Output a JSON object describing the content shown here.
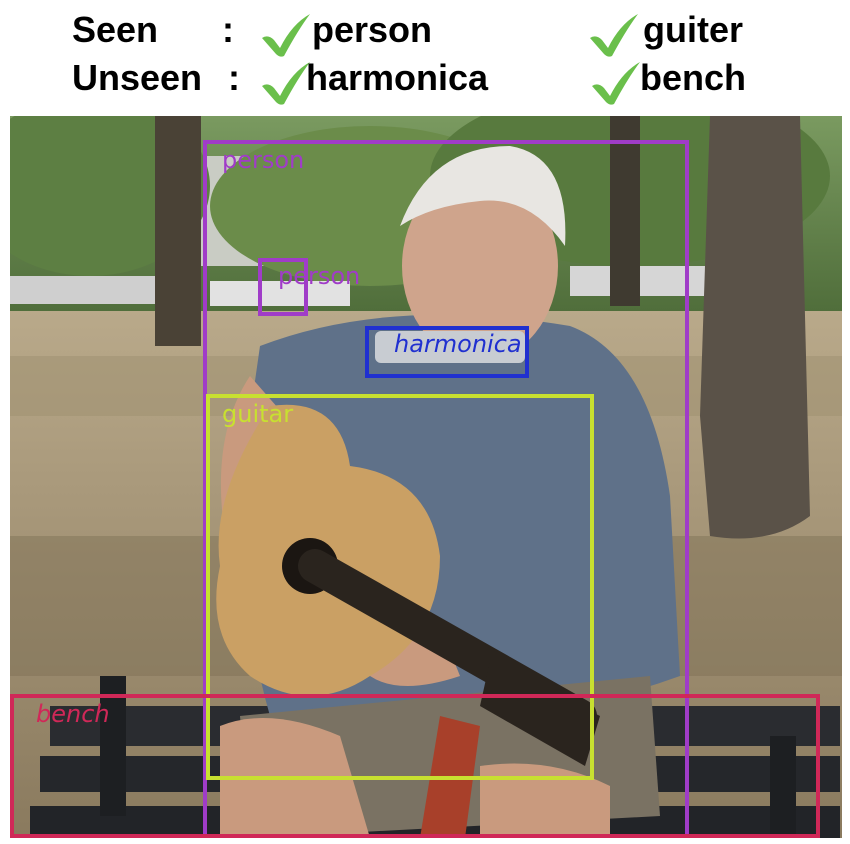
{
  "legend": {
    "seen_label": "Seen",
    "unseen_label": "Unseen",
    "colon": ":",
    "seen_items": [
      "person",
      "guiter"
    ],
    "unseen_items": [
      "harmonica",
      "bench"
    ],
    "check_icon": "check-icon",
    "check_color": "#6abf4b"
  },
  "detections": [
    {
      "label": "person",
      "color": "#a03cc8"
    },
    {
      "label": "person",
      "color": "#a03cc8"
    },
    {
      "label": "harmonica",
      "color": "#2030d0"
    },
    {
      "label": "guitar",
      "color": "#c8e030"
    },
    {
      "label": "bench",
      "color": "#d02858"
    }
  ]
}
